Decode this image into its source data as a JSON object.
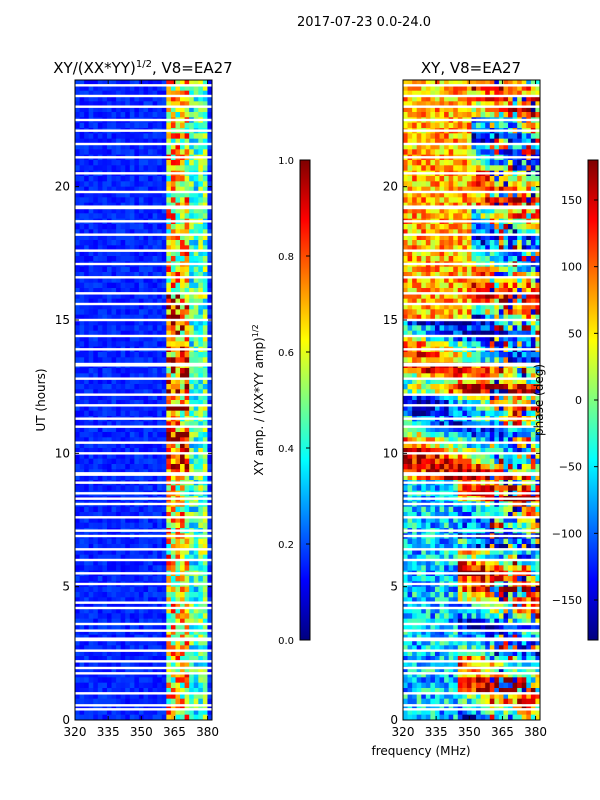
{
  "suptitle": "2017-07-23 0.0-24.0",
  "colors": {
    "jet": [
      "#00007f",
      "#0000ff",
      "#007fff",
      "#00ffff",
      "#7fff7f",
      "#ffff00",
      "#ff7f00",
      "#ff0000",
      "#7f0000"
    ],
    "gap": "#ffffff",
    "background": "#ffffff"
  },
  "shared_xlabel": "frequency (MHz)",
  "chart_data": [
    {
      "type": "heatmap",
      "title": "XY/(XX*YY)",
      "title_sup": "1/2",
      "title_tail": ", V8=EA27",
      "xlabel": "",
      "ylabel": "UT (hours)",
      "xlim": [
        320,
        382
      ],
      "ylim": [
        0,
        24
      ],
      "xticks": [
        320,
        335,
        350,
        365,
        380
      ],
      "yticks": [
        0,
        5,
        10,
        15,
        20
      ],
      "colorbar": {
        "label": "XY amp. / (XX*YY amp)",
        "label_sup": "1/2",
        "range": [
          0.0,
          1.0
        ],
        "ticks": [
          "0.0",
          "0.2",
          "0.4",
          "0.6",
          "0.8",
          "1.0"
        ]
      }
    },
    {
      "type": "heatmap",
      "title": "XY, V8=EA27",
      "xlabel": "frequency (MHz)",
      "ylabel": "",
      "xlim": [
        320,
        382
      ],
      "ylim": [
        0,
        24
      ],
      "xticks": [
        320,
        335,
        350,
        365,
        380
      ],
      "yticks": [
        0,
        5,
        10,
        15,
        20
      ],
      "colorbar": {
        "label": "phase (deg)",
        "range": [
          -180,
          180
        ],
        "ticks": [
          "150",
          "100",
          "50",
          "0",
          "−50",
          "−100",
          "−150"
        ],
        "tick_values": [
          150,
          100,
          50,
          0,
          -50,
          -100,
          -150
        ]
      }
    }
  ],
  "flagged_gaps_hours": [
    0.4,
    0.55,
    1.0,
    1.75,
    1.95,
    2.2,
    2.6,
    3.0,
    3.05,
    3.35,
    3.6,
    4.2,
    4.4,
    5.1,
    5.5,
    6.0,
    6.4,
    6.9,
    7.1,
    7.6,
    8.1,
    8.3,
    8.5,
    8.9,
    9.2,
    9.25,
    10.0,
    10.4,
    11.0,
    11.3,
    11.8,
    12.2,
    12.8,
    13.3,
    13.35,
    13.9,
    14.4,
    15.0,
    15.6,
    16.0,
    16.6,
    17.1,
    17.6,
    18.2,
    18.7,
    19.2,
    19.25,
    19.8,
    20.5,
    21.1,
    21.6,
    22.1,
    22.5,
    23.0,
    23.4,
    23.8
  ]
}
